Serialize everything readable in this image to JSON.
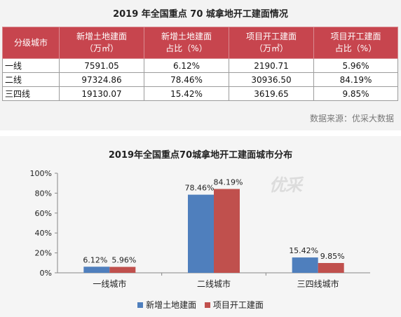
{
  "table_title": "2019 年全国重点 70 城拿地开工建面情况",
  "table": {
    "headers": [
      [
        "分级城市"
      ],
      [
        "新增土地建面",
        "（万㎡）"
      ],
      [
        "新增土地建面",
        "占比（%）"
      ],
      [
        "项目开工建面",
        "（万㎡）"
      ],
      [
        "项目开工建面",
        "占比（%）"
      ]
    ],
    "rows": [
      [
        "一线",
        "7591.05",
        "6.12%",
        "2190.71",
        "5.96%"
      ],
      [
        "二线",
        "97324.86",
        "78.46%",
        "30936.50",
        "84.19%"
      ],
      [
        "三四线",
        "19130.07",
        "15.42%",
        "3619.65",
        "9.85%"
      ]
    ]
  },
  "source": "数据来源：优采大数据",
  "watermark": "优采",
  "colors": {
    "header_bg": "#c7454e",
    "series_land": "#4f7fbd",
    "series_start": "#c0504d"
  },
  "chart_data": {
    "type": "bar",
    "title": "2019年全国重点70城拿地开工建面城市分布",
    "categories": [
      "一线城市",
      "二线城市",
      "三四线城市"
    ],
    "series": [
      {
        "name": "新增土地建面",
        "values": [
          6.12,
          78.46,
          15.42
        ],
        "labels": [
          "6.12%",
          "78.46%",
          "15.42%"
        ]
      },
      {
        "name": "项目开工建面",
        "values": [
          5.96,
          84.19,
          9.85
        ],
        "labels": [
          "5.96%",
          "84.19%",
          "9.85%"
        ]
      }
    ],
    "ylim": [
      0,
      100
    ],
    "yticks": [
      "0%",
      "20%",
      "40%",
      "60%",
      "80%",
      "100%"
    ],
    "legend": "bottom",
    "grid": false
  }
}
